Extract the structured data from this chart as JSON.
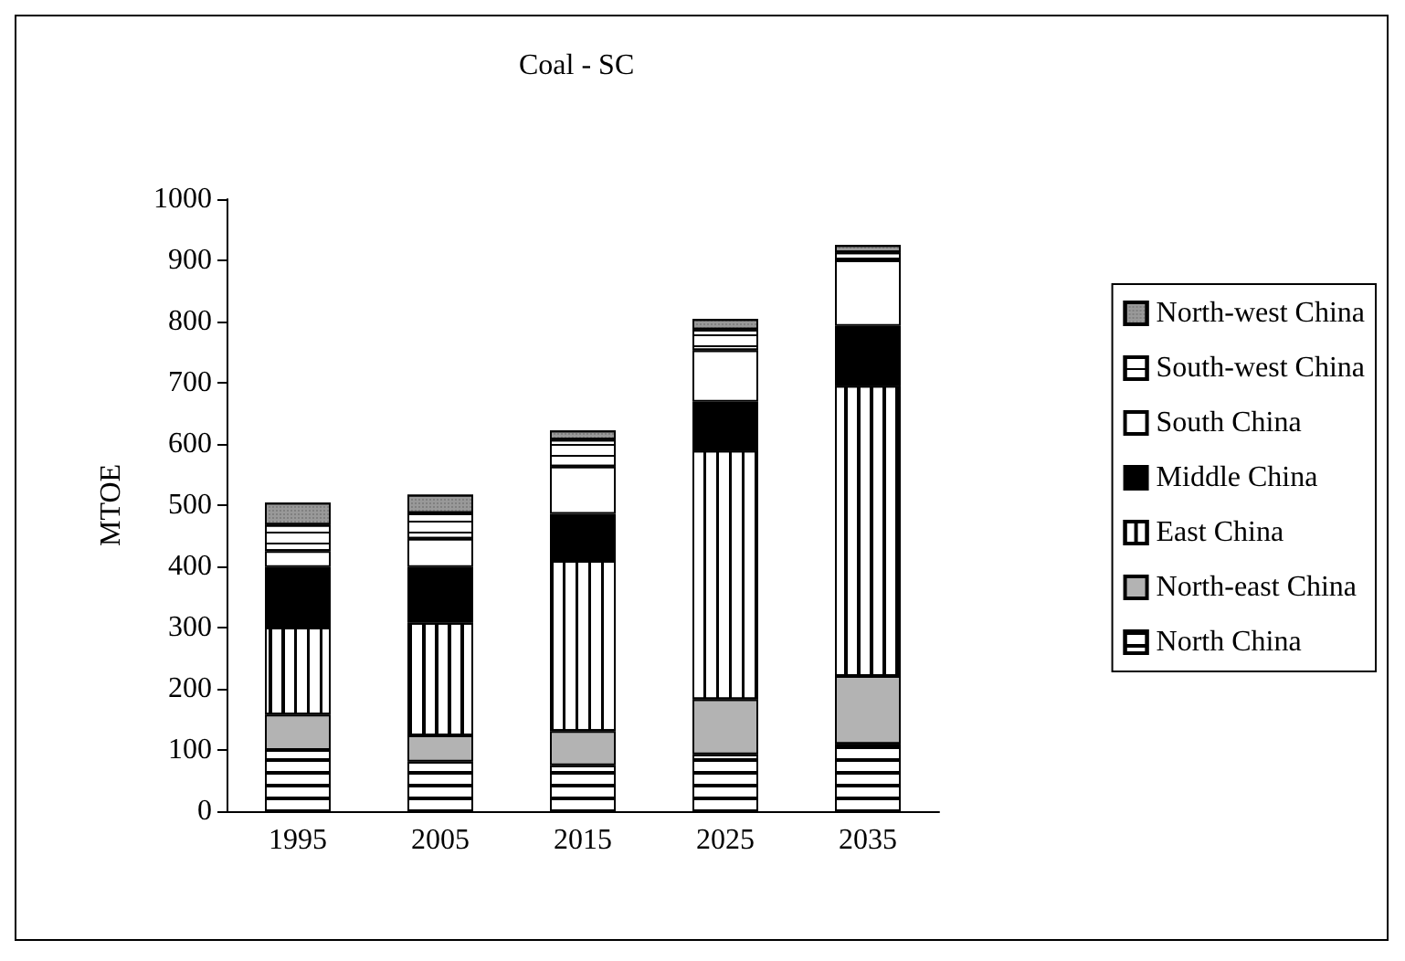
{
  "chart_data": {
    "type": "bar",
    "title": "Coal - SC",
    "ylabel": "MTOE",
    "stacked": true,
    "categories": [
      "1995",
      "2005",
      "2015",
      "2025",
      "2035"
    ],
    "series": [
      {
        "name": "North China",
        "color": "#ffffff",
        "values": [
          100,
          81,
          75,
          93,
          110
        ]
      },
      {
        "name": "North-east China",
        "color": "#b3b3b3",
        "values": [
          58,
          43,
          56,
          90,
          111
        ]
      },
      {
        "name": "East China",
        "color": "#ffffff",
        "values": [
          142,
          184,
          278,
          406,
          474
        ]
      },
      {
        "name": "Middle China",
        "color": "#000000",
        "values": [
          99,
          91,
          77,
          80,
          98
        ]
      },
      {
        "name": "South China",
        "color": "#ffffff",
        "values": [
          26,
          46,
          77,
          84,
          107
        ]
      },
      {
        "name": "South-west China",
        "color": "#ffffff",
        "values": [
          43,
          42,
          44,
          34,
          13
        ]
      },
      {
        "name": "North-west China",
        "color": "#999999",
        "values": [
          36,
          30,
          15,
          17,
          12
        ]
      }
    ],
    "ylim": [
      0,
      1000
    ],
    "yticks": [
      0,
      100,
      200,
      300,
      400,
      500,
      600,
      700,
      800,
      900,
      1000
    ],
    "grid": false,
    "legend": "right"
  }
}
